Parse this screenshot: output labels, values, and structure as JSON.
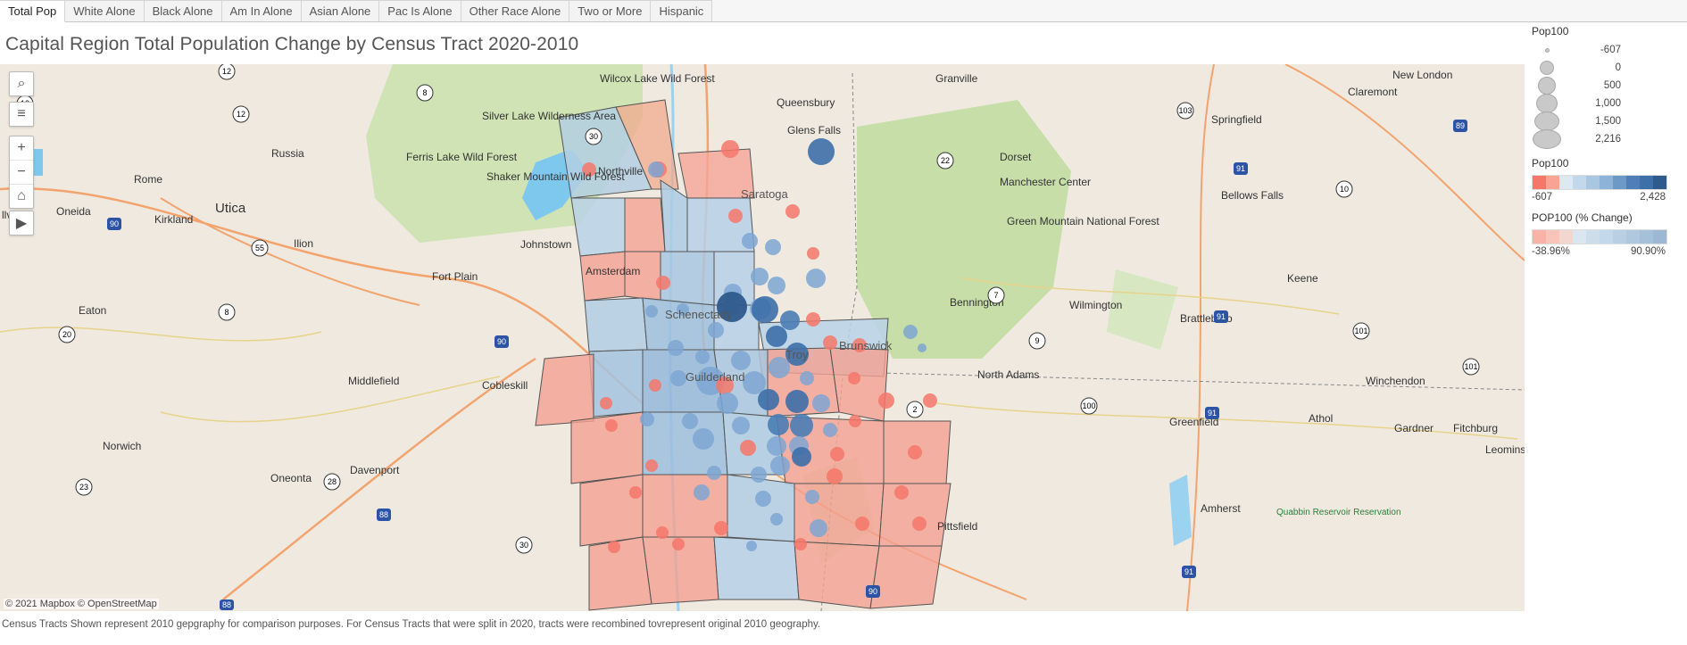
{
  "tabs": [
    "Total Pop",
    "White Alone",
    "Black Alone",
    "Am In Alone",
    "Asian Alone",
    "Pac Is Alone",
    "Other Race Alone",
    "Two or More",
    "Hispanic"
  ],
  "active_tab": "Total Pop",
  "title": "Capital Region Total Population Change by Census Tract 2020-2010",
  "map": {
    "attribution": "© 2021 Mapbox  © OpenStreetMap",
    "controls": [
      "search-icon",
      "layers-icon",
      "zoom-in-icon",
      "zoom-out-icon",
      "home-icon",
      "play-icon"
    ],
    "places": [
      "Wilcox Lake Wild Forest",
      "Queensbury",
      "Glens Falls",
      "Granville",
      "New London",
      "Claremont",
      "Silver Lake Wilderness Area",
      "Russia",
      "Rome",
      "Ferris Lake Wild Forest",
      "Shaker Mountain Wild Forest",
      "Northville",
      "Dorset",
      "Manchester Center",
      "Springfield",
      "Bellows Falls",
      "Utica",
      "Oneida",
      "Kirkland",
      "Ilion",
      "Johnstown",
      "Amsterdam",
      "Fort Plain",
      "Green Mountain National Forest",
      "Bennington",
      "Wilmington",
      "Keene",
      "Brattleboro",
      "Eaton",
      "Middlefield",
      "Cobleskill",
      "North Adams",
      "Winchendon",
      "Norwich",
      "Greenfield",
      "Athol",
      "Gardner",
      "Fitchburg",
      "Leominst",
      "Oneonta",
      "Davenport",
      "Pittsfield",
      "Amherst",
      "Quabbin Reservoir Reservation",
      "llvan",
      "Schenectady",
      "Guilderland",
      "Saratoga",
      "Troy",
      "Brunswick"
    ],
    "routes": [
      "12",
      "13",
      "8",
      "30",
      "12",
      "55",
      "90",
      "20",
      "8",
      "90",
      "22",
      "103",
      "89",
      "91",
      "10",
      "7",
      "9",
      "91",
      "101",
      "101",
      "100",
      "91",
      "23",
      "28",
      "88",
      "88",
      "30",
      "90",
      "91",
      "2"
    ]
  },
  "legend": {
    "size_title": "Pop100",
    "size_values": [
      "-607",
      "0",
      "500",
      "1,000",
      "1,500",
      "2,216"
    ],
    "color_title": "Pop100",
    "color_min": "-607",
    "color_max": "2,428",
    "pct_title": "POP100 (% Change)",
    "pct_min": "-38.96%",
    "pct_max": "90.90%",
    "colors": {
      "neg_strong": "#f4776a",
      "neg_light": "#f8b3a6",
      "pos_light": "#c3d8ea",
      "pos_mid": "#7ea6d2",
      "pos_strong": "#2e5a8c"
    }
  },
  "footnote": "Census Tracts Shown represent 2010 gepgraphy for comparison purposes. For Census Tracts that were split in 2020, tracts were recombined tovrepresent original 2010 geography."
}
